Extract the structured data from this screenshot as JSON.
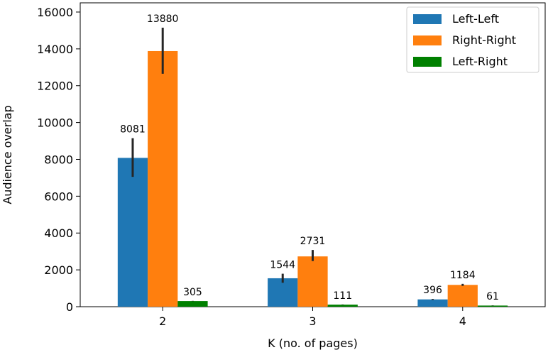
{
  "chart_data": {
    "type": "bar",
    "title": "",
    "xlabel": "K (no. of pages)",
    "ylabel": "Audience overlap",
    "categories": [
      "2",
      "3",
      "4"
    ],
    "ylim": [
      0,
      16500
    ],
    "yticks": [
      0,
      2000,
      4000,
      6000,
      8000,
      10000,
      12000,
      14000,
      16000
    ],
    "grid": false,
    "legend_position": "top-right",
    "series": [
      {
        "name": "Left-Left",
        "color": "#1f77b4",
        "values": [
          8081,
          1544,
          396
        ],
        "labels": [
          "8081",
          "1544",
          "396"
        ],
        "error": [
          [
            7050,
            9150
          ],
          [
            1300,
            1790
          ],
          [
            370,
            420
          ]
        ]
      },
      {
        "name": "Right-Right",
        "color": "#ff7f0e",
        "values": [
          13880,
          2731,
          1184
        ],
        "labels": [
          "13880",
          "2731",
          "1184"
        ],
        "error": [
          [
            12650,
            15150
          ],
          [
            2480,
            3080
          ],
          [
            1130,
            1240
          ]
        ]
      },
      {
        "name": "Left-Right",
        "color": "#008000",
        "values": [
          305,
          111,
          61
        ],
        "labels": [
          "305",
          "111",
          "61"
        ],
        "error": [
          [
            295,
            315
          ],
          [
            100,
            122
          ],
          [
            52,
            70
          ]
        ]
      }
    ]
  }
}
